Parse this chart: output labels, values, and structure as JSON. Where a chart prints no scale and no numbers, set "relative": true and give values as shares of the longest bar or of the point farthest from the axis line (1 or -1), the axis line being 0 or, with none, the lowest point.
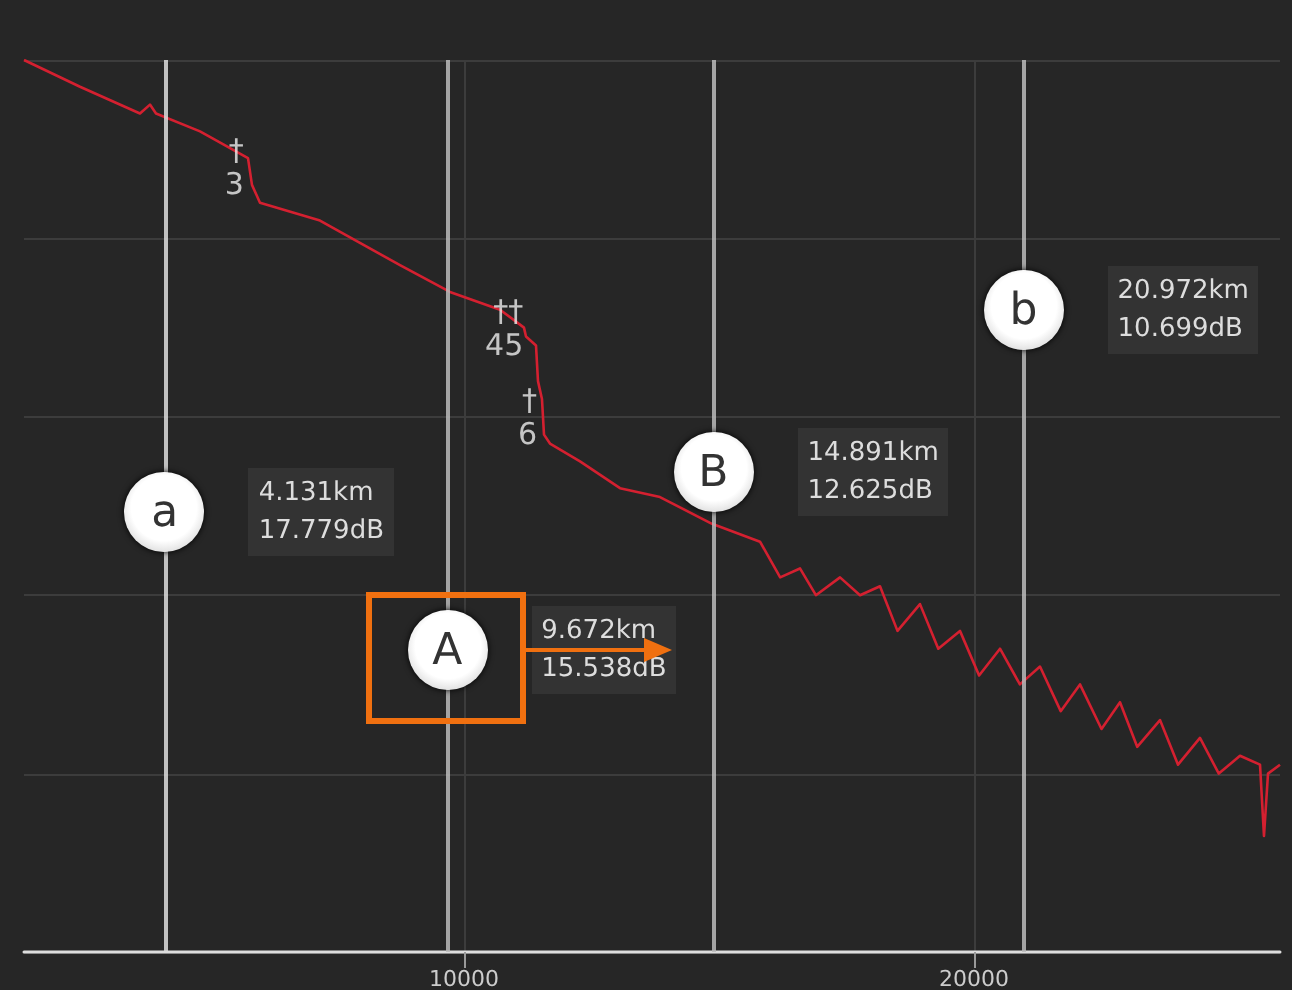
{
  "chart_data": {
    "type": "line",
    "relative": true,
    "x": [
      1373,
      2471,
      3647,
      3843,
      3961,
      4824,
      5765,
      5843,
      6000,
      7176,
      8745,
      9725,
      10706,
      11176,
      11216,
      11412,
      11451,
      11529,
      11569,
      11686,
      12275,
      13059,
      13843,
      14863,
      15804,
      16200,
      16588,
      16900,
      17373,
      17765,
      18157,
      18500,
      18941,
      19300,
      19725,
      20100,
      20510,
      20900,
      21294,
      21700,
      22078,
      22500,
      22863,
      23200,
      23647,
      24000,
      24431,
      24800,
      25216,
      25608,
      25686,
      25765,
      26000
    ],
    "series": [
      {
        "color": "#d42030",
        "values": [
          1.0,
          0.97,
          0.94,
          0.95,
          0.94,
          0.92,
          0.89,
          0.86,
          0.84,
          0.82,
          0.77,
          0.74,
          0.72,
          0.7,
          0.69,
          0.68,
          0.64,
          0.62,
          0.58,
          0.57,
          0.55,
          0.52,
          0.51,
          0.48,
          0.46,
          0.42,
          0.43,
          0.4,
          0.42,
          0.4,
          0.41,
          0.36,
          0.39,
          0.34,
          0.36,
          0.31,
          0.34,
          0.3,
          0.32,
          0.27,
          0.3,
          0.25,
          0.28,
          0.23,
          0.26,
          0.21,
          0.24,
          0.2,
          0.22,
          0.21,
          0.13,
          0.2,
          0.21
        ]
      }
    ],
    "xlim": [
      1373,
      26000
    ],
    "xticks": [
      10000,
      20000
    ],
    "grid": true,
    "marker": "none",
    "line_style": "solid",
    "ref_lines": [
      {
        "axis": "x",
        "value": 4131,
        "label": "a",
        "color": "#dddddd"
      },
      {
        "axis": "x",
        "value": 9672,
        "label": "A",
        "color": "#bbbbbb"
      },
      {
        "axis": "x",
        "value": 14891,
        "label": "B",
        "color": "#bbbbbb"
      },
      {
        "axis": "x",
        "value": 20972,
        "label": "b",
        "color": "#bbbbbb"
      }
    ],
    "annotations": [
      "4.131km\n17.779dB",
      "9.672km\n15.538dB",
      "14.891km\n12.625dB",
      "20.972km\n10.699dB",
      {
        "text": "†\n3",
        "x": 5800,
        "y": 0.88
      },
      {
        "text": "††\n45",
        "x": 11280,
        "y": 0.7
      },
      {
        "text": "†\n6",
        "x": 11550,
        "y": 0.6
      }
    ]
  }
}
